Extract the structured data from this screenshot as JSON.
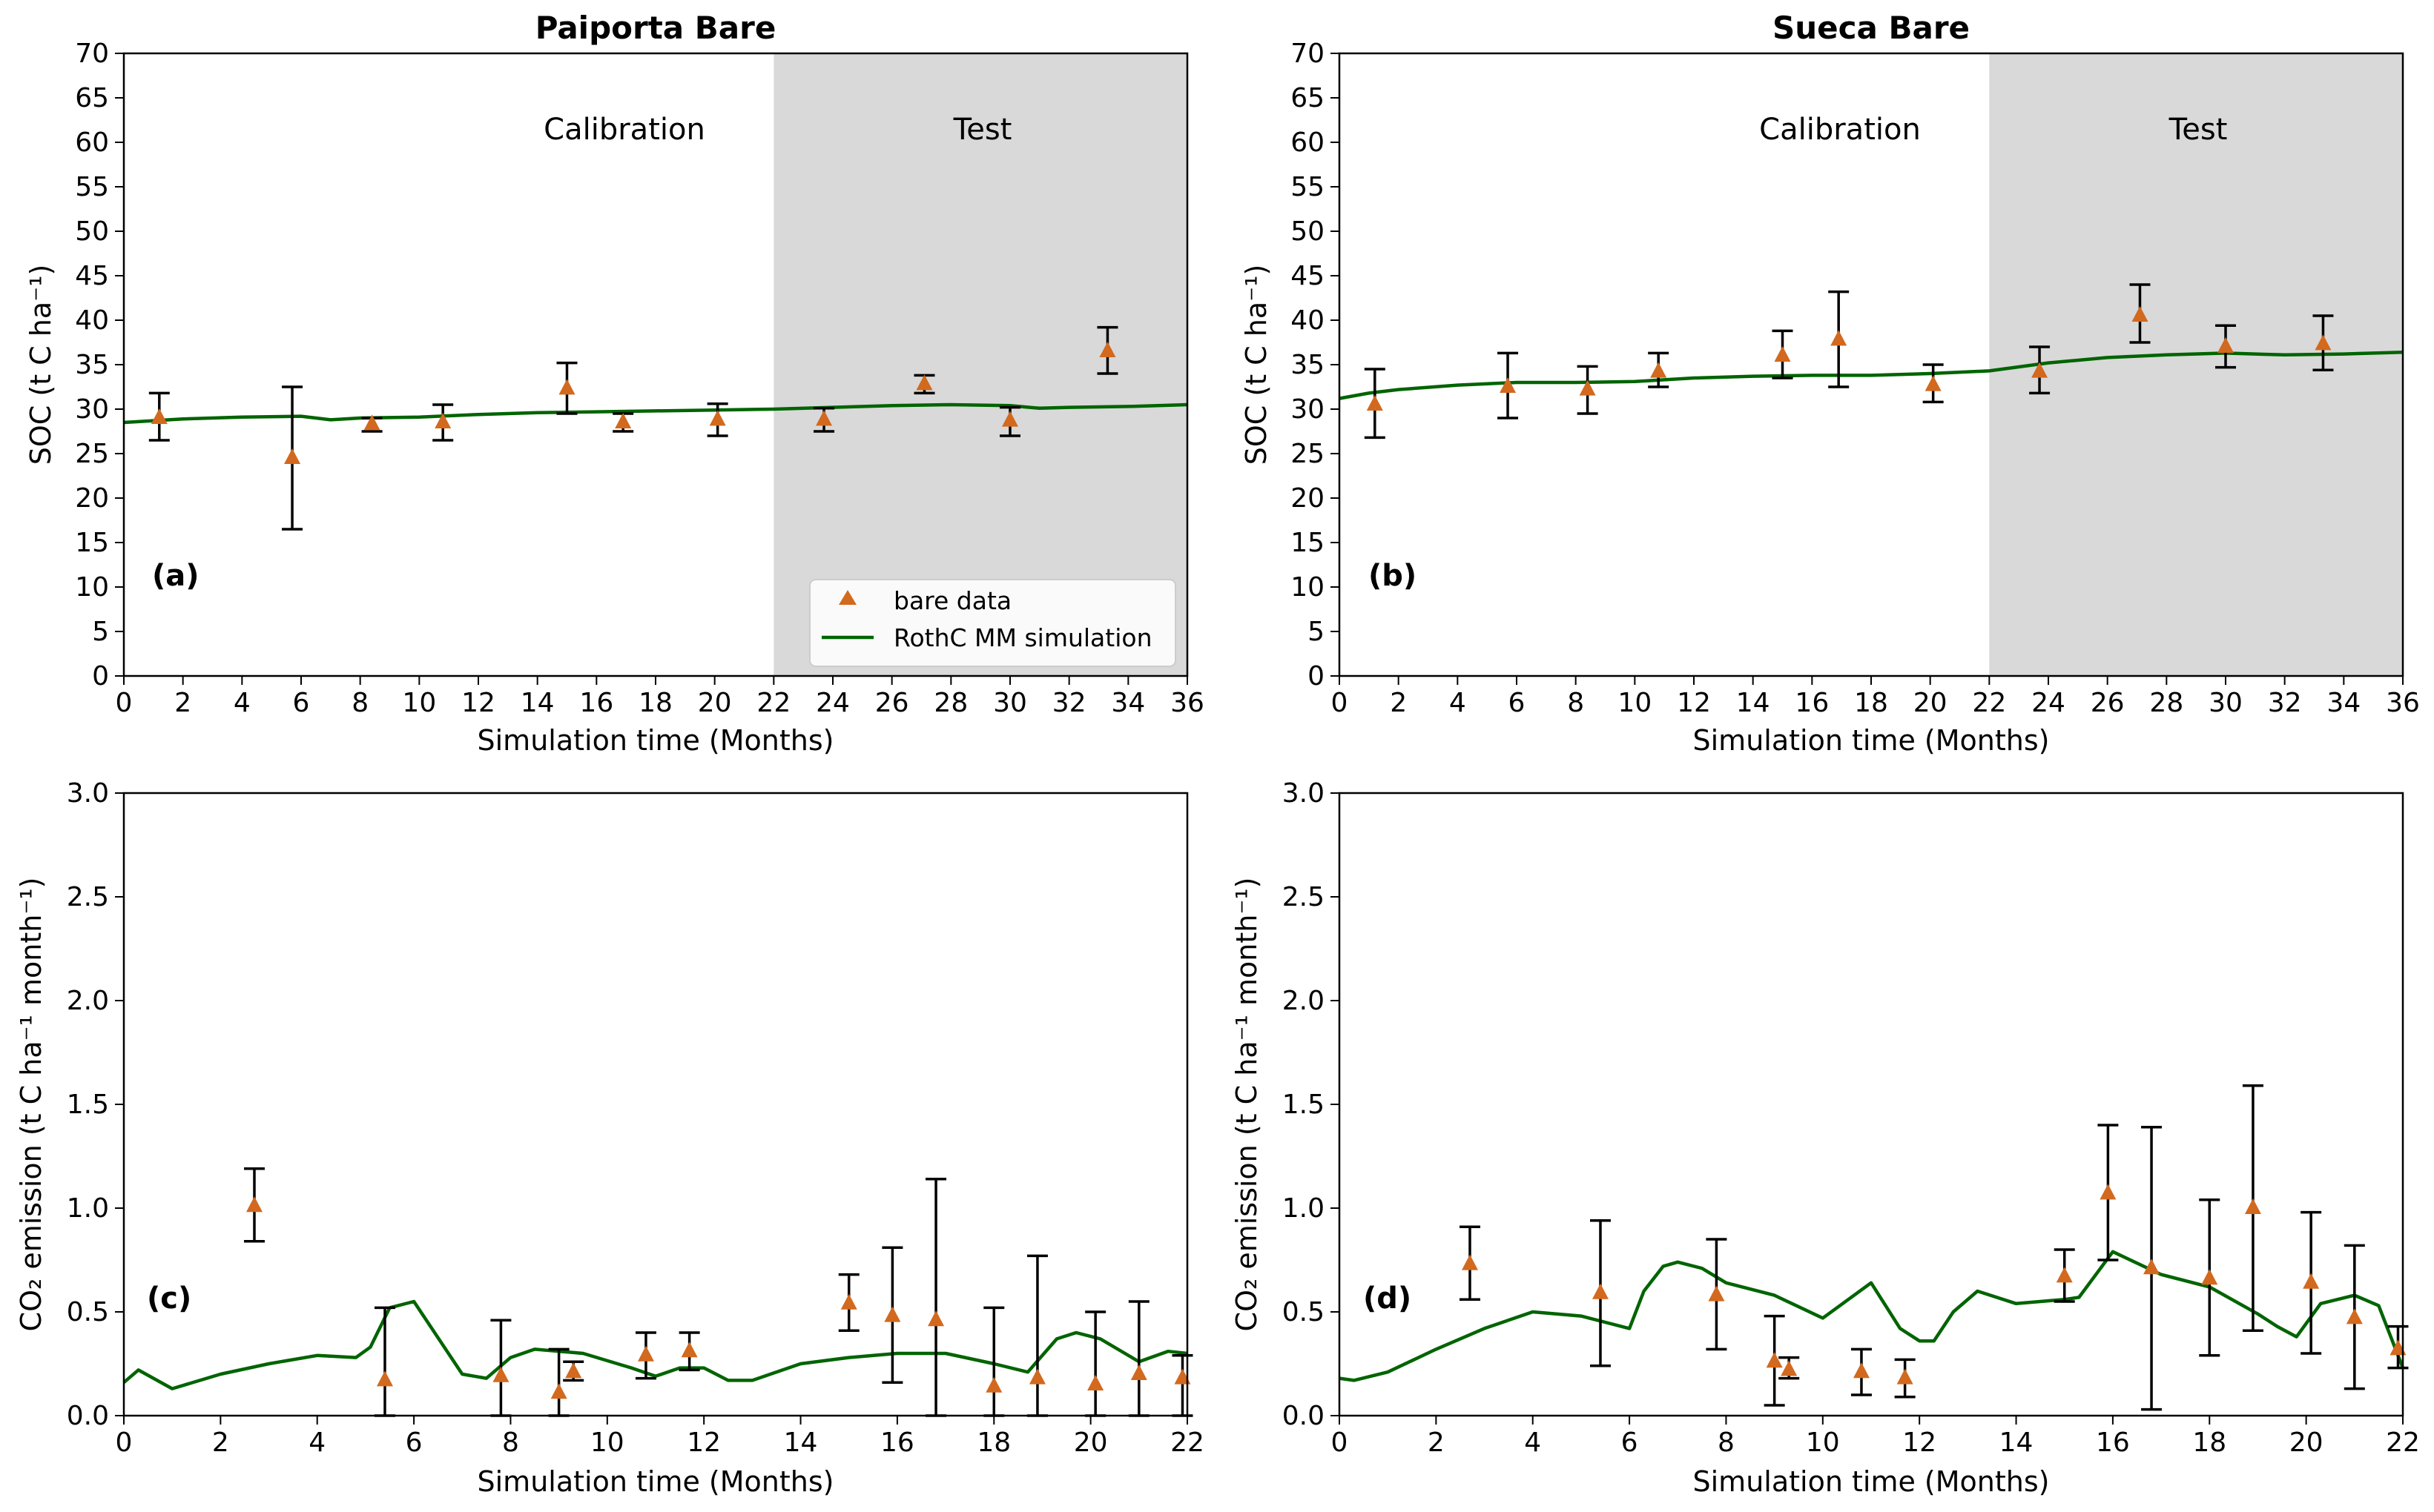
{
  "colors": {
    "simulation_line": "#006400",
    "marker": "#d2691e",
    "error_bar": "#000000",
    "test_shade": "#d9d9d9"
  },
  "chart_data": [
    {
      "type": "scatter",
      "panel": "(a)",
      "title": "Paiporta Bare",
      "xlabel": "Simulation time (Months)",
      "ylabel": "SOC (t C ha⁻¹)",
      "xlim": [
        0,
        36
      ],
      "ylim": [
        0,
        70
      ],
      "xticks": [
        0,
        2,
        4,
        6,
        8,
        10,
        12,
        14,
        16,
        18,
        20,
        22,
        24,
        26,
        28,
        30,
        32,
        34,
        36
      ],
      "yticks": [
        0,
        5,
        10,
        15,
        20,
        25,
        30,
        35,
        40,
        45,
        50,
        55,
        60,
        65,
        70
      ],
      "regions": [
        {
          "label": "Calibration",
          "x": [
            0,
            22
          ]
        },
        {
          "label": "Test",
          "x": [
            22,
            36
          ]
        }
      ],
      "legend": {
        "placement": "lower-right",
        "entries": [
          "bare data",
          "RothC MM simulation"
        ]
      },
      "observations": [
        {
          "x": 1.2,
          "y": 29.0,
          "lo": 26.5,
          "hi": 31.8
        },
        {
          "x": 5.7,
          "y": 24.5,
          "lo": 16.5,
          "hi": 32.5
        },
        {
          "x": 8.4,
          "y": 28.3,
          "lo": 27.5,
          "hi": 29.0
        },
        {
          "x": 10.8,
          "y": 28.5,
          "lo": 26.5,
          "hi": 30.5
        },
        {
          "x": 15.0,
          "y": 32.3,
          "lo": 29.5,
          "hi": 35.2
        },
        {
          "x": 16.9,
          "y": 28.5,
          "lo": 27.5,
          "hi": 29.5
        },
        {
          "x": 20.1,
          "y": 28.8,
          "lo": 27.0,
          "hi": 30.6
        },
        {
          "x": 23.7,
          "y": 28.8,
          "lo": 27.5,
          "hi": 30.1
        },
        {
          "x": 27.1,
          "y": 32.8,
          "lo": 31.8,
          "hi": 33.8
        },
        {
          "x": 30.0,
          "y": 28.7,
          "lo": 27.0,
          "hi": 30.2
        },
        {
          "x": 33.3,
          "y": 36.5,
          "lo": 34.0,
          "hi": 39.2
        }
      ],
      "simulation": {
        "x": [
          0,
          2,
          4,
          6,
          7,
          8,
          10,
          12,
          14,
          16,
          18,
          20,
          22,
          24,
          26,
          28,
          30,
          31,
          32,
          34,
          36
        ],
        "y": [
          28.5,
          28.9,
          29.1,
          29.2,
          28.8,
          29.0,
          29.1,
          29.4,
          29.6,
          29.7,
          29.8,
          29.9,
          30.0,
          30.2,
          30.4,
          30.5,
          30.4,
          30.1,
          30.2,
          30.3,
          30.5
        ]
      }
    },
    {
      "type": "scatter",
      "panel": "(b)",
      "title": "Sueca Bare",
      "xlabel": "Simulation time (Months)",
      "ylabel": "SOC (t C ha⁻¹)",
      "xlim": [
        0,
        36
      ],
      "ylim": [
        0,
        70
      ],
      "xticks": [
        0,
        2,
        4,
        6,
        8,
        10,
        12,
        14,
        16,
        18,
        20,
        22,
        24,
        26,
        28,
        30,
        32,
        34,
        36
      ],
      "yticks": [
        0,
        5,
        10,
        15,
        20,
        25,
        30,
        35,
        40,
        45,
        50,
        55,
        60,
        65,
        70
      ],
      "regions": [
        {
          "label": "Calibration",
          "x": [
            0,
            22
          ]
        },
        {
          "label": "Test",
          "x": [
            22,
            36
          ]
        }
      ],
      "observations": [
        {
          "x": 1.2,
          "y": 30.5,
          "lo": 26.8,
          "hi": 34.5
        },
        {
          "x": 5.7,
          "y": 32.5,
          "lo": 29.0,
          "hi": 36.3
        },
        {
          "x": 8.4,
          "y": 32.2,
          "lo": 29.5,
          "hi": 34.8
        },
        {
          "x": 10.8,
          "y": 34.2,
          "lo": 32.5,
          "hi": 36.3
        },
        {
          "x": 15.0,
          "y": 36.0,
          "lo": 33.5,
          "hi": 38.8
        },
        {
          "x": 16.9,
          "y": 37.8,
          "lo": 32.5,
          "hi": 43.2
        },
        {
          "x": 20.1,
          "y": 32.7,
          "lo": 30.8,
          "hi": 35.0
        },
        {
          "x": 23.7,
          "y": 34.2,
          "lo": 31.8,
          "hi": 37.0
        },
        {
          "x": 27.1,
          "y": 40.5,
          "lo": 37.5,
          "hi": 44.0
        },
        {
          "x": 30.0,
          "y": 37.0,
          "lo": 34.7,
          "hi": 39.4
        },
        {
          "x": 33.3,
          "y": 37.3,
          "lo": 34.4,
          "hi": 40.5
        }
      ],
      "simulation": {
        "x": [
          0,
          1,
          2,
          4,
          6,
          8,
          10,
          12,
          14,
          16,
          18,
          20,
          22,
          24,
          26,
          28,
          30,
          32,
          34,
          36
        ],
        "y": [
          31.2,
          31.8,
          32.2,
          32.7,
          33.0,
          33.0,
          33.1,
          33.5,
          33.7,
          33.8,
          33.8,
          34.0,
          34.3,
          35.2,
          35.8,
          36.1,
          36.3,
          36.1,
          36.2,
          36.4
        ]
      }
    },
    {
      "type": "scatter",
      "panel": "(c)",
      "xlabel": "Simulation time (Months)",
      "ylabel": "CO₂ emission (t C ha⁻¹ month⁻¹)",
      "xlim": [
        0,
        22
      ],
      "ylim": [
        0,
        3
      ],
      "xticks": [
        0,
        2,
        4,
        6,
        8,
        10,
        12,
        14,
        16,
        18,
        20,
        22
      ],
      "yticks": [
        0.0,
        0.5,
        1.0,
        1.5,
        2.0,
        2.5,
        3.0
      ],
      "observations": [
        {
          "x": 2.7,
          "y": 1.01,
          "lo": 0.84,
          "hi": 1.19
        },
        {
          "x": 5.4,
          "y": 0.17,
          "lo": 0.0,
          "hi": 0.52
        },
        {
          "x": 7.8,
          "y": 0.19,
          "lo": 0.0,
          "hi": 0.46
        },
        {
          "x": 9.0,
          "y": 0.11,
          "lo": 0.0,
          "hi": 0.32
        },
        {
          "x": 9.3,
          "y": 0.21,
          "lo": 0.17,
          "hi": 0.26
        },
        {
          "x": 10.8,
          "y": 0.29,
          "lo": 0.18,
          "hi": 0.4
        },
        {
          "x": 11.7,
          "y": 0.31,
          "lo": 0.22,
          "hi": 0.4
        },
        {
          "x": 15.0,
          "y": 0.54,
          "lo": 0.41,
          "hi": 0.68
        },
        {
          "x": 15.9,
          "y": 0.48,
          "lo": 0.16,
          "hi": 0.81
        },
        {
          "x": 16.8,
          "y": 0.46,
          "lo": 0.0,
          "hi": 1.14
        },
        {
          "x": 18.0,
          "y": 0.14,
          "lo": 0.0,
          "hi": 0.52
        },
        {
          "x": 18.9,
          "y": 0.18,
          "lo": 0.0,
          "hi": 0.77
        },
        {
          "x": 20.1,
          "y": 0.15,
          "lo": 0.0,
          "hi": 0.5
        },
        {
          "x": 21.0,
          "y": 0.2,
          "lo": 0.0,
          "hi": 0.55
        },
        {
          "x": 21.9,
          "y": 0.18,
          "lo": 0.0,
          "hi": 0.29
        }
      ],
      "simulation": {
        "x": [
          0,
          0.3,
          1,
          2,
          3,
          4,
          4.8,
          5.1,
          5.5,
          6,
          7,
          7.5,
          8,
          8.5,
          9.5,
          10.5,
          11,
          11.5,
          12,
          12.5,
          13,
          14,
          15,
          16,
          17,
          18,
          18.7,
          19.3,
          19.7,
          20.2,
          21,
          21.6,
          22
        ],
        "y": [
          0.16,
          0.22,
          0.13,
          0.2,
          0.25,
          0.29,
          0.28,
          0.33,
          0.52,
          0.55,
          0.2,
          0.18,
          0.28,
          0.32,
          0.3,
          0.23,
          0.19,
          0.23,
          0.23,
          0.17,
          0.17,
          0.25,
          0.28,
          0.3,
          0.3,
          0.25,
          0.21,
          0.37,
          0.4,
          0.37,
          0.26,
          0.31,
          0.3
        ]
      }
    },
    {
      "type": "scatter",
      "panel": "(d)",
      "xlabel": "Simulation time (Months)",
      "ylabel": "CO₂ emission (t C ha⁻¹ month⁻¹)",
      "xlim": [
        0,
        22
      ],
      "ylim": [
        0,
        3
      ],
      "xticks": [
        0,
        2,
        4,
        6,
        8,
        10,
        12,
        14,
        16,
        18,
        20,
        22
      ],
      "yticks": [
        0.0,
        0.5,
        1.0,
        1.5,
        2.0,
        2.5,
        3.0
      ],
      "observations": [
        {
          "x": 2.7,
          "y": 0.73,
          "lo": 0.56,
          "hi": 0.91
        },
        {
          "x": 5.4,
          "y": 0.59,
          "lo": 0.24,
          "hi": 0.94
        },
        {
          "x": 7.8,
          "y": 0.58,
          "lo": 0.32,
          "hi": 0.85
        },
        {
          "x": 9.0,
          "y": 0.26,
          "lo": 0.05,
          "hi": 0.48
        },
        {
          "x": 9.3,
          "y": 0.22,
          "lo": 0.18,
          "hi": 0.28
        },
        {
          "x": 10.8,
          "y": 0.21,
          "lo": 0.1,
          "hi": 0.32
        },
        {
          "x": 11.7,
          "y": 0.18,
          "lo": 0.09,
          "hi": 0.27
        },
        {
          "x": 15.0,
          "y": 0.67,
          "lo": 0.55,
          "hi": 0.8
        },
        {
          "x": 15.9,
          "y": 1.07,
          "lo": 0.75,
          "hi": 1.4
        },
        {
          "x": 16.8,
          "y": 0.71,
          "lo": 0.03,
          "hi": 1.39
        },
        {
          "x": 18.0,
          "y": 0.66,
          "lo": 0.29,
          "hi": 1.04
        },
        {
          "x": 18.9,
          "y": 1.0,
          "lo": 0.41,
          "hi": 1.59
        },
        {
          "x": 20.1,
          "y": 0.64,
          "lo": 0.3,
          "hi": 0.98
        },
        {
          "x": 21.0,
          "y": 0.47,
          "lo": 0.13,
          "hi": 0.82
        },
        {
          "x": 21.9,
          "y": 0.32,
          "lo": 0.23,
          "hi": 0.43
        }
      ],
      "simulation": {
        "x": [
          0,
          0.3,
          1,
          2,
          3,
          4,
          5,
          5.5,
          6,
          6.3,
          6.7,
          7,
          7.5,
          8,
          9,
          10,
          11,
          11.6,
          12,
          12.3,
          12.7,
          13.2,
          14,
          15,
          15.3,
          16,
          17,
          18,
          19,
          19.4,
          19.8,
          20.3,
          21,
          21.5,
          22
        ],
        "y": [
          0.18,
          0.17,
          0.21,
          0.32,
          0.42,
          0.5,
          0.48,
          0.45,
          0.42,
          0.6,
          0.72,
          0.74,
          0.71,
          0.64,
          0.58,
          0.47,
          0.64,
          0.42,
          0.36,
          0.36,
          0.5,
          0.6,
          0.54,
          0.56,
          0.57,
          0.79,
          0.68,
          0.62,
          0.49,
          0.43,
          0.38,
          0.54,
          0.58,
          0.53,
          0.23
        ]
      }
    }
  ]
}
